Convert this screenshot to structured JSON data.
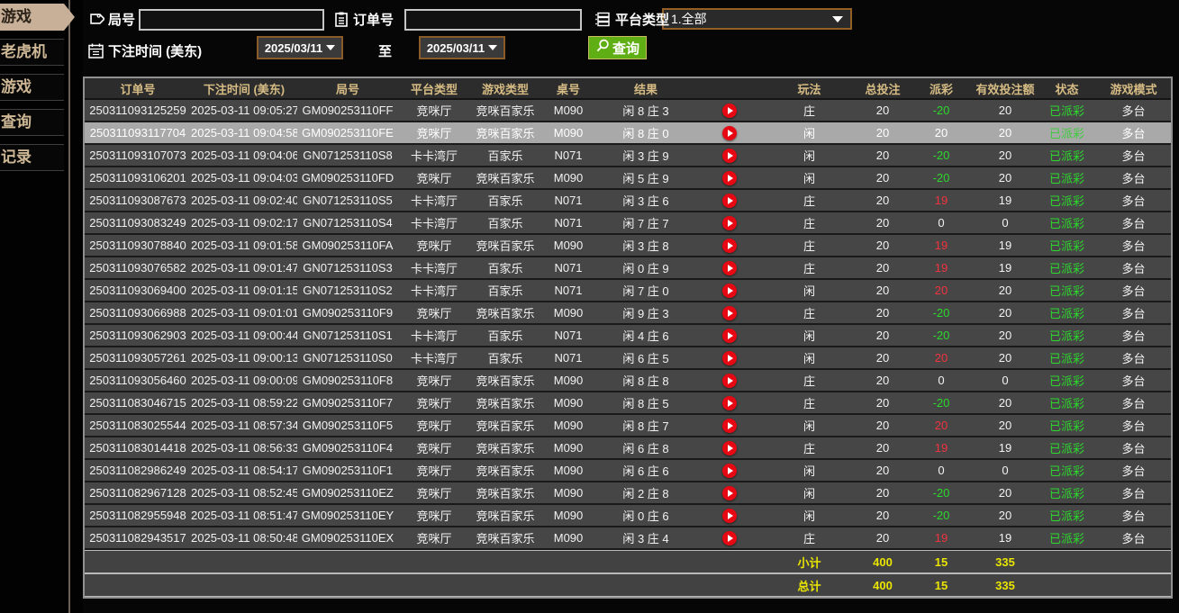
{
  "sidebar": {
    "items": [
      {
        "label": "游戏",
        "active": true
      },
      {
        "label": "老虎机",
        "active": false
      },
      {
        "label": "游戏",
        "active": false
      },
      {
        "label": "查询",
        "active": false
      },
      {
        "label": "记录",
        "active": false
      }
    ]
  },
  "filters": {
    "round_label": "局号",
    "order_label": "订单号",
    "platform_label": "平台类型",
    "platform_value": "1.全部",
    "bet_time_label": "下注时间 (美东)",
    "date_from": "2025/03/11",
    "to_label": "至",
    "date_to": "2025/03/11",
    "search_label": "查询",
    "round_value": "",
    "order_value": ""
  },
  "icons": {
    "round": "tag-icon",
    "order": "clipboard-icon",
    "platform": "list-icon",
    "bet_time": "calendar-icon",
    "search": "magnifier-icon",
    "replay": "play-icon"
  },
  "colors": {
    "sidebar_active_bg": "#c7b097",
    "sidebar_text": "#cdb795",
    "header_gold": "#d6bc84",
    "payout_positive_red": "#f2323e",
    "payout_negative_green": "#2cd82c",
    "status_green": "#2cd82c",
    "totals_yellow": "#e9e500",
    "button_green": "#5fae14",
    "picker_border_orange": "#8a5a28",
    "play_icon_red": "#e60812",
    "highlight_row_gray": "#a9a9a9"
  },
  "table": {
    "columns": [
      "订单号",
      "下注时间 (美东)",
      "局号",
      "平台类型",
      "游戏类型",
      "桌号",
      "结果",
      "",
      "玩法",
      "总投注",
      "派彩",
      "有效投注额",
      "状态",
      "游戏模式"
    ],
    "rows": [
      {
        "order_no": "250311093125259",
        "bet_time": "2025-03-11 09:05:27",
        "round_no": "GM090253110FF",
        "platform": "竞咪厅",
        "game_type": "竞咪百家乐",
        "table_no": "M090",
        "result": "闲 8 庄 3",
        "play_method": "庄",
        "total_bet": "20",
        "payout": "-20",
        "payout_sign": "neg",
        "valid_bet": "20",
        "status": "已派彩",
        "game_mode": "多台",
        "highlighted": false
      },
      {
        "order_no": "250311093117704",
        "bet_time": "2025-03-11 09:04:58",
        "round_no": "GM090253110FE",
        "platform": "竞咪厅",
        "game_type": "竞咪百家乐",
        "table_no": "M090",
        "result": "闲 8 庄 0",
        "play_method": "闲",
        "total_bet": "20",
        "payout": "20",
        "payout_sign": "pos",
        "valid_bet": "20",
        "status": "已派彩",
        "game_mode": "多台",
        "highlighted": true
      },
      {
        "order_no": "250311093107073",
        "bet_time": "2025-03-11 09:04:06",
        "round_no": "GN071253110S8",
        "platform": "卡卡湾厅",
        "game_type": "百家乐",
        "table_no": "N071",
        "result": "闲 3 庄 9",
        "play_method": "闲",
        "total_bet": "20",
        "payout": "-20",
        "payout_sign": "neg",
        "valid_bet": "20",
        "status": "已派彩",
        "game_mode": "多台",
        "highlighted": false
      },
      {
        "order_no": "250311093106201",
        "bet_time": "2025-03-11 09:04:03",
        "round_no": "GM090253110FD",
        "platform": "竞咪厅",
        "game_type": "竞咪百家乐",
        "table_no": "M090",
        "result": "闲 5 庄 9",
        "play_method": "闲",
        "total_bet": "20",
        "payout": "-20",
        "payout_sign": "neg",
        "valid_bet": "20",
        "status": "已派彩",
        "game_mode": "多台",
        "highlighted": false
      },
      {
        "order_no": "250311093087673",
        "bet_time": "2025-03-11 09:02:40",
        "round_no": "GN071253110S5",
        "platform": "卡卡湾厅",
        "game_type": "百家乐",
        "table_no": "N071",
        "result": "闲 3 庄 6",
        "play_method": "庄",
        "total_bet": "20",
        "payout": "19",
        "payout_sign": "pos",
        "valid_bet": "19",
        "status": "已派彩",
        "game_mode": "多台",
        "highlighted": false
      },
      {
        "order_no": "250311093083249",
        "bet_time": "2025-03-11 09:02:17",
        "round_no": "GN071253110S4",
        "platform": "卡卡湾厅",
        "game_type": "百家乐",
        "table_no": "N071",
        "result": "闲 7 庄 7",
        "play_method": "庄",
        "total_bet": "20",
        "payout": "0",
        "payout_sign": "zero",
        "valid_bet": "0",
        "status": "已派彩",
        "game_mode": "多台",
        "highlighted": false
      },
      {
        "order_no": "250311093078840",
        "bet_time": "2025-03-11 09:01:58",
        "round_no": "GM090253110FA",
        "platform": "竞咪厅",
        "game_type": "竞咪百家乐",
        "table_no": "M090",
        "result": "闲 3 庄 8",
        "play_method": "庄",
        "total_bet": "20",
        "payout": "19",
        "payout_sign": "pos",
        "valid_bet": "19",
        "status": "已派彩",
        "game_mode": "多台",
        "highlighted": false
      },
      {
        "order_no": "250311093076582",
        "bet_time": "2025-03-11 09:01:47",
        "round_no": "GN071253110S3",
        "platform": "卡卡湾厅",
        "game_type": "百家乐",
        "table_no": "N071",
        "result": "闲 0 庄 9",
        "play_method": "庄",
        "total_bet": "20",
        "payout": "19",
        "payout_sign": "pos",
        "valid_bet": "19",
        "status": "已派彩",
        "game_mode": "多台",
        "highlighted": false
      },
      {
        "order_no": "250311093069400",
        "bet_time": "2025-03-11 09:01:15",
        "round_no": "GN071253110S2",
        "platform": "卡卡湾厅",
        "game_type": "百家乐",
        "table_no": "N071",
        "result": "闲 7 庄 0",
        "play_method": "闲",
        "total_bet": "20",
        "payout": "20",
        "payout_sign": "pos",
        "valid_bet": "20",
        "status": "已派彩",
        "game_mode": "多台",
        "highlighted": false
      },
      {
        "order_no": "250311093066988",
        "bet_time": "2025-03-11 09:01:01",
        "round_no": "GM090253110F9",
        "platform": "竞咪厅",
        "game_type": "竞咪百家乐",
        "table_no": "M090",
        "result": "闲 9 庄 3",
        "play_method": "庄",
        "total_bet": "20",
        "payout": "-20",
        "payout_sign": "neg",
        "valid_bet": "20",
        "status": "已派彩",
        "game_mode": "多台",
        "highlighted": false
      },
      {
        "order_no": "250311093062903",
        "bet_time": "2025-03-11 09:00:44",
        "round_no": "GN071253110S1",
        "platform": "卡卡湾厅",
        "game_type": "百家乐",
        "table_no": "N071",
        "result": "闲 4 庄 6",
        "play_method": "闲",
        "total_bet": "20",
        "payout": "-20",
        "payout_sign": "neg",
        "valid_bet": "20",
        "status": "已派彩",
        "game_mode": "多台",
        "highlighted": false
      },
      {
        "order_no": "250311093057261",
        "bet_time": "2025-03-11 09:00:13",
        "round_no": "GN071253110S0",
        "platform": "卡卡湾厅",
        "game_type": "百家乐",
        "table_no": "N071",
        "result": "闲 6 庄 5",
        "play_method": "闲",
        "total_bet": "20",
        "payout": "20",
        "payout_sign": "pos",
        "valid_bet": "20",
        "status": "已派彩",
        "game_mode": "多台",
        "highlighted": false
      },
      {
        "order_no": "250311093056460",
        "bet_time": "2025-03-11 09:00:09",
        "round_no": "GM090253110F8",
        "platform": "竞咪厅",
        "game_type": "竞咪百家乐",
        "table_no": "M090",
        "result": "闲 8 庄 8",
        "play_method": "庄",
        "total_bet": "20",
        "payout": "0",
        "payout_sign": "zero",
        "valid_bet": "0",
        "status": "已派彩",
        "game_mode": "多台",
        "highlighted": false
      },
      {
        "order_no": "250311083046715",
        "bet_time": "2025-03-11 08:59:22",
        "round_no": "GM090253110F7",
        "platform": "竞咪厅",
        "game_type": "竞咪百家乐",
        "table_no": "M090",
        "result": "闲 8 庄 5",
        "play_method": "庄",
        "total_bet": "20",
        "payout": "-20",
        "payout_sign": "neg",
        "valid_bet": "20",
        "status": "已派彩",
        "game_mode": "多台",
        "highlighted": false
      },
      {
        "order_no": "250311083025544",
        "bet_time": "2025-03-11 08:57:34",
        "round_no": "GM090253110F5",
        "platform": "竞咪厅",
        "game_type": "竞咪百家乐",
        "table_no": "M090",
        "result": "闲 8 庄 7",
        "play_method": "闲",
        "total_bet": "20",
        "payout": "20",
        "payout_sign": "pos",
        "valid_bet": "20",
        "status": "已派彩",
        "game_mode": "多台",
        "highlighted": false
      },
      {
        "order_no": "250311083014418",
        "bet_time": "2025-03-11 08:56:33",
        "round_no": "GM090253110F4",
        "platform": "竞咪厅",
        "game_type": "竞咪百家乐",
        "table_no": "M090",
        "result": "闲 6 庄 8",
        "play_method": "庄",
        "total_bet": "20",
        "payout": "19",
        "payout_sign": "pos",
        "valid_bet": "19",
        "status": "已派彩",
        "game_mode": "多台",
        "highlighted": false
      },
      {
        "order_no": "250311082986249",
        "bet_time": "2025-03-11 08:54:17",
        "round_no": "GM090253110F1",
        "platform": "竞咪厅",
        "game_type": "竞咪百家乐",
        "table_no": "M090",
        "result": "闲 6 庄 6",
        "play_method": "闲",
        "total_bet": "20",
        "payout": "0",
        "payout_sign": "zero",
        "valid_bet": "0",
        "status": "已派彩",
        "game_mode": "多台",
        "highlighted": false
      },
      {
        "order_no": "250311082967128",
        "bet_time": "2025-03-11 08:52:45",
        "round_no": "GM090253110EZ",
        "platform": "竞咪厅",
        "game_type": "竞咪百家乐",
        "table_no": "M090",
        "result": "闲 2 庄 8",
        "play_method": "闲",
        "total_bet": "20",
        "payout": "-20",
        "payout_sign": "neg",
        "valid_bet": "20",
        "status": "已派彩",
        "game_mode": "多台",
        "highlighted": false
      },
      {
        "order_no": "250311082955948",
        "bet_time": "2025-03-11 08:51:47",
        "round_no": "GM090253110EY",
        "platform": "竞咪厅",
        "game_type": "竞咪百家乐",
        "table_no": "M090",
        "result": "闲 0 庄 6",
        "play_method": "闲",
        "total_bet": "20",
        "payout": "-20",
        "payout_sign": "neg",
        "valid_bet": "20",
        "status": "已派彩",
        "game_mode": "多台",
        "highlighted": false
      },
      {
        "order_no": "250311082943517",
        "bet_time": "2025-03-11 08:50:48",
        "round_no": "GM090253110EX",
        "platform": "竞咪厅",
        "game_type": "竞咪百家乐",
        "table_no": "M090",
        "result": "闲 3 庄 4",
        "play_method": "庄",
        "total_bet": "20",
        "payout": "19",
        "payout_sign": "pos",
        "valid_bet": "19",
        "status": "已派彩",
        "game_mode": "多台",
        "highlighted": false
      }
    ],
    "subtotal": {
      "label": "小计",
      "total_bet": "400",
      "payout": "15",
      "valid_bet": "335"
    },
    "grand_total": {
      "label": "总计",
      "total_bet": "400",
      "payout": "15",
      "valid_bet": "335"
    }
  }
}
